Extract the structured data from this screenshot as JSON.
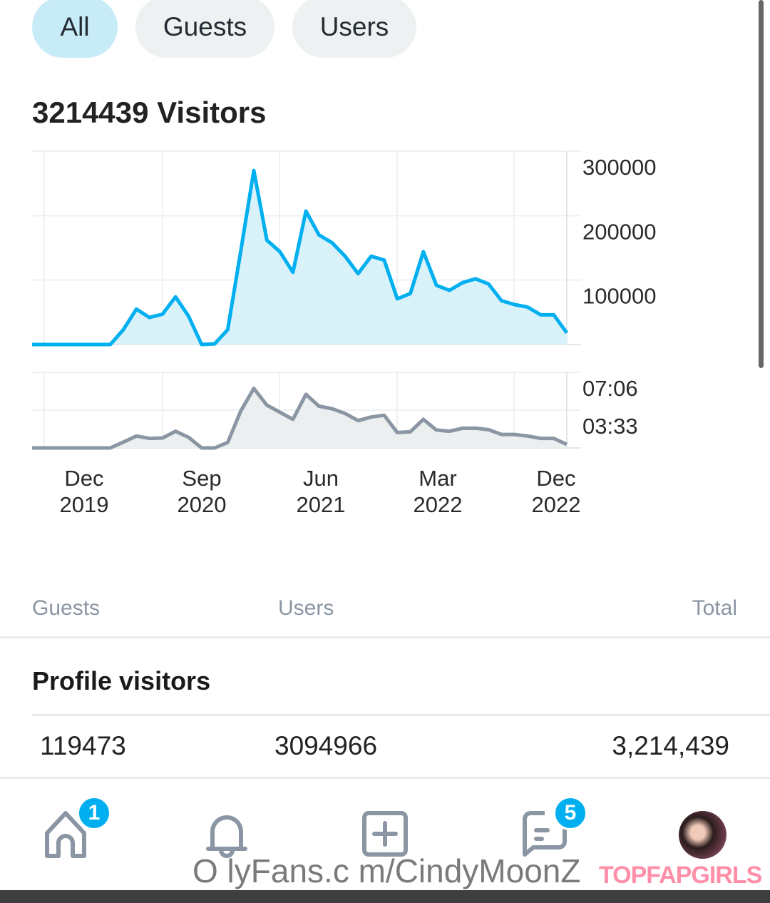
{
  "tabs": [
    {
      "label": "All",
      "active": true
    },
    {
      "label": "Guests",
      "active": false
    },
    {
      "label": "Users",
      "active": false
    }
  ],
  "title": "3214439 Visitors",
  "chart_data": [
    {
      "type": "area",
      "title": "",
      "x": [
        "2019-11",
        "2019-12",
        "2020-01",
        "2020-02",
        "2020-03",
        "2020-04",
        "2020-05",
        "2020-06",
        "2020-07",
        "2020-08",
        "2020-09",
        "2020-10",
        "2020-11",
        "2020-12",
        "2021-01",
        "2021-02",
        "2021-03",
        "2021-04",
        "2021-05",
        "2021-06",
        "2021-07",
        "2021-08",
        "2021-09",
        "2021-10",
        "2021-11",
        "2021-12",
        "2022-01",
        "2022-02",
        "2022-03",
        "2022-04",
        "2022-05",
        "2022-06",
        "2022-07",
        "2022-08",
        "2022-09",
        "2022-10",
        "2022-11",
        "2022-12",
        "2023-01",
        "2023-02",
        "2023-03",
        "2023-04"
      ],
      "values": [
        0,
        0,
        0,
        0,
        0,
        0,
        0,
        23000,
        55000,
        42000,
        47000,
        74000,
        44000,
        0,
        1000,
        23000,
        145000,
        270000,
        162000,
        144000,
        112000,
        207000,
        170000,
        158000,
        137000,
        110000,
        137000,
        131000,
        71000,
        79000,
        144000,
        92000,
        84000,
        96000,
        102000,
        94000,
        68000,
        62000,
        58000,
        46000,
        46000,
        18000
      ],
      "yticks": [
        "300000",
        "200000",
        "100000"
      ],
      "ylim": [
        0,
        300000
      ],
      "color": "#00aff0",
      "fill": "#d9f2fa",
      "grid": true,
      "yaxis": "right"
    },
    {
      "type": "area",
      "title": "",
      "values": [
        "0:00",
        "0:00",
        "0:00",
        "0:00",
        "0:00",
        "0:00",
        "0:00",
        "0:33",
        "1:07",
        "0:54",
        "0:56",
        "1:34",
        "1:00",
        "0:00",
        "0:00",
        "0:31",
        "3:28",
        "5:35",
        "4:01",
        "3:21",
        "2:41",
        "5:02",
        "3:55",
        "3:41",
        "3:14",
        "2:34",
        "2:54",
        "3:04",
        "1:27",
        "1:31",
        "2:41",
        "1:41",
        "1:34",
        "1:51",
        "1:51",
        "1:43",
        "1:16",
        "1:16",
        "1:07",
        "0:54",
        "0:54",
        "0:20"
      ],
      "yticks": [
        "07:06",
        "03:33"
      ],
      "ylim": [
        "0:00",
        "7:06"
      ],
      "color": "#8a96a3",
      "fill": "#eceff0",
      "grid": true,
      "yaxis": "right",
      "xticks": [
        {
          "month": "Dec",
          "year": "2019"
        },
        {
          "month": "Sep",
          "year": "2020"
        },
        {
          "month": "Jun",
          "year": "2021"
        },
        {
          "month": "Mar",
          "year": "2022"
        },
        {
          "month": "Dec",
          "year": "2022"
        }
      ]
    }
  ],
  "table": {
    "headers": [
      "Guests",
      "Users",
      "Total"
    ],
    "section": "Profile visitors",
    "row": [
      "119473",
      "3094966",
      "3,214,439"
    ]
  },
  "nav": {
    "items": [
      "home-icon",
      "bell-icon",
      "plus-square-icon",
      "message-icon",
      "avatar"
    ],
    "home_badge": "1",
    "messages_badge": "5"
  },
  "watermark": {
    "url": "O lyFans.c m/CindyMoonZ",
    "site": "TOPFAPGIRLS"
  }
}
